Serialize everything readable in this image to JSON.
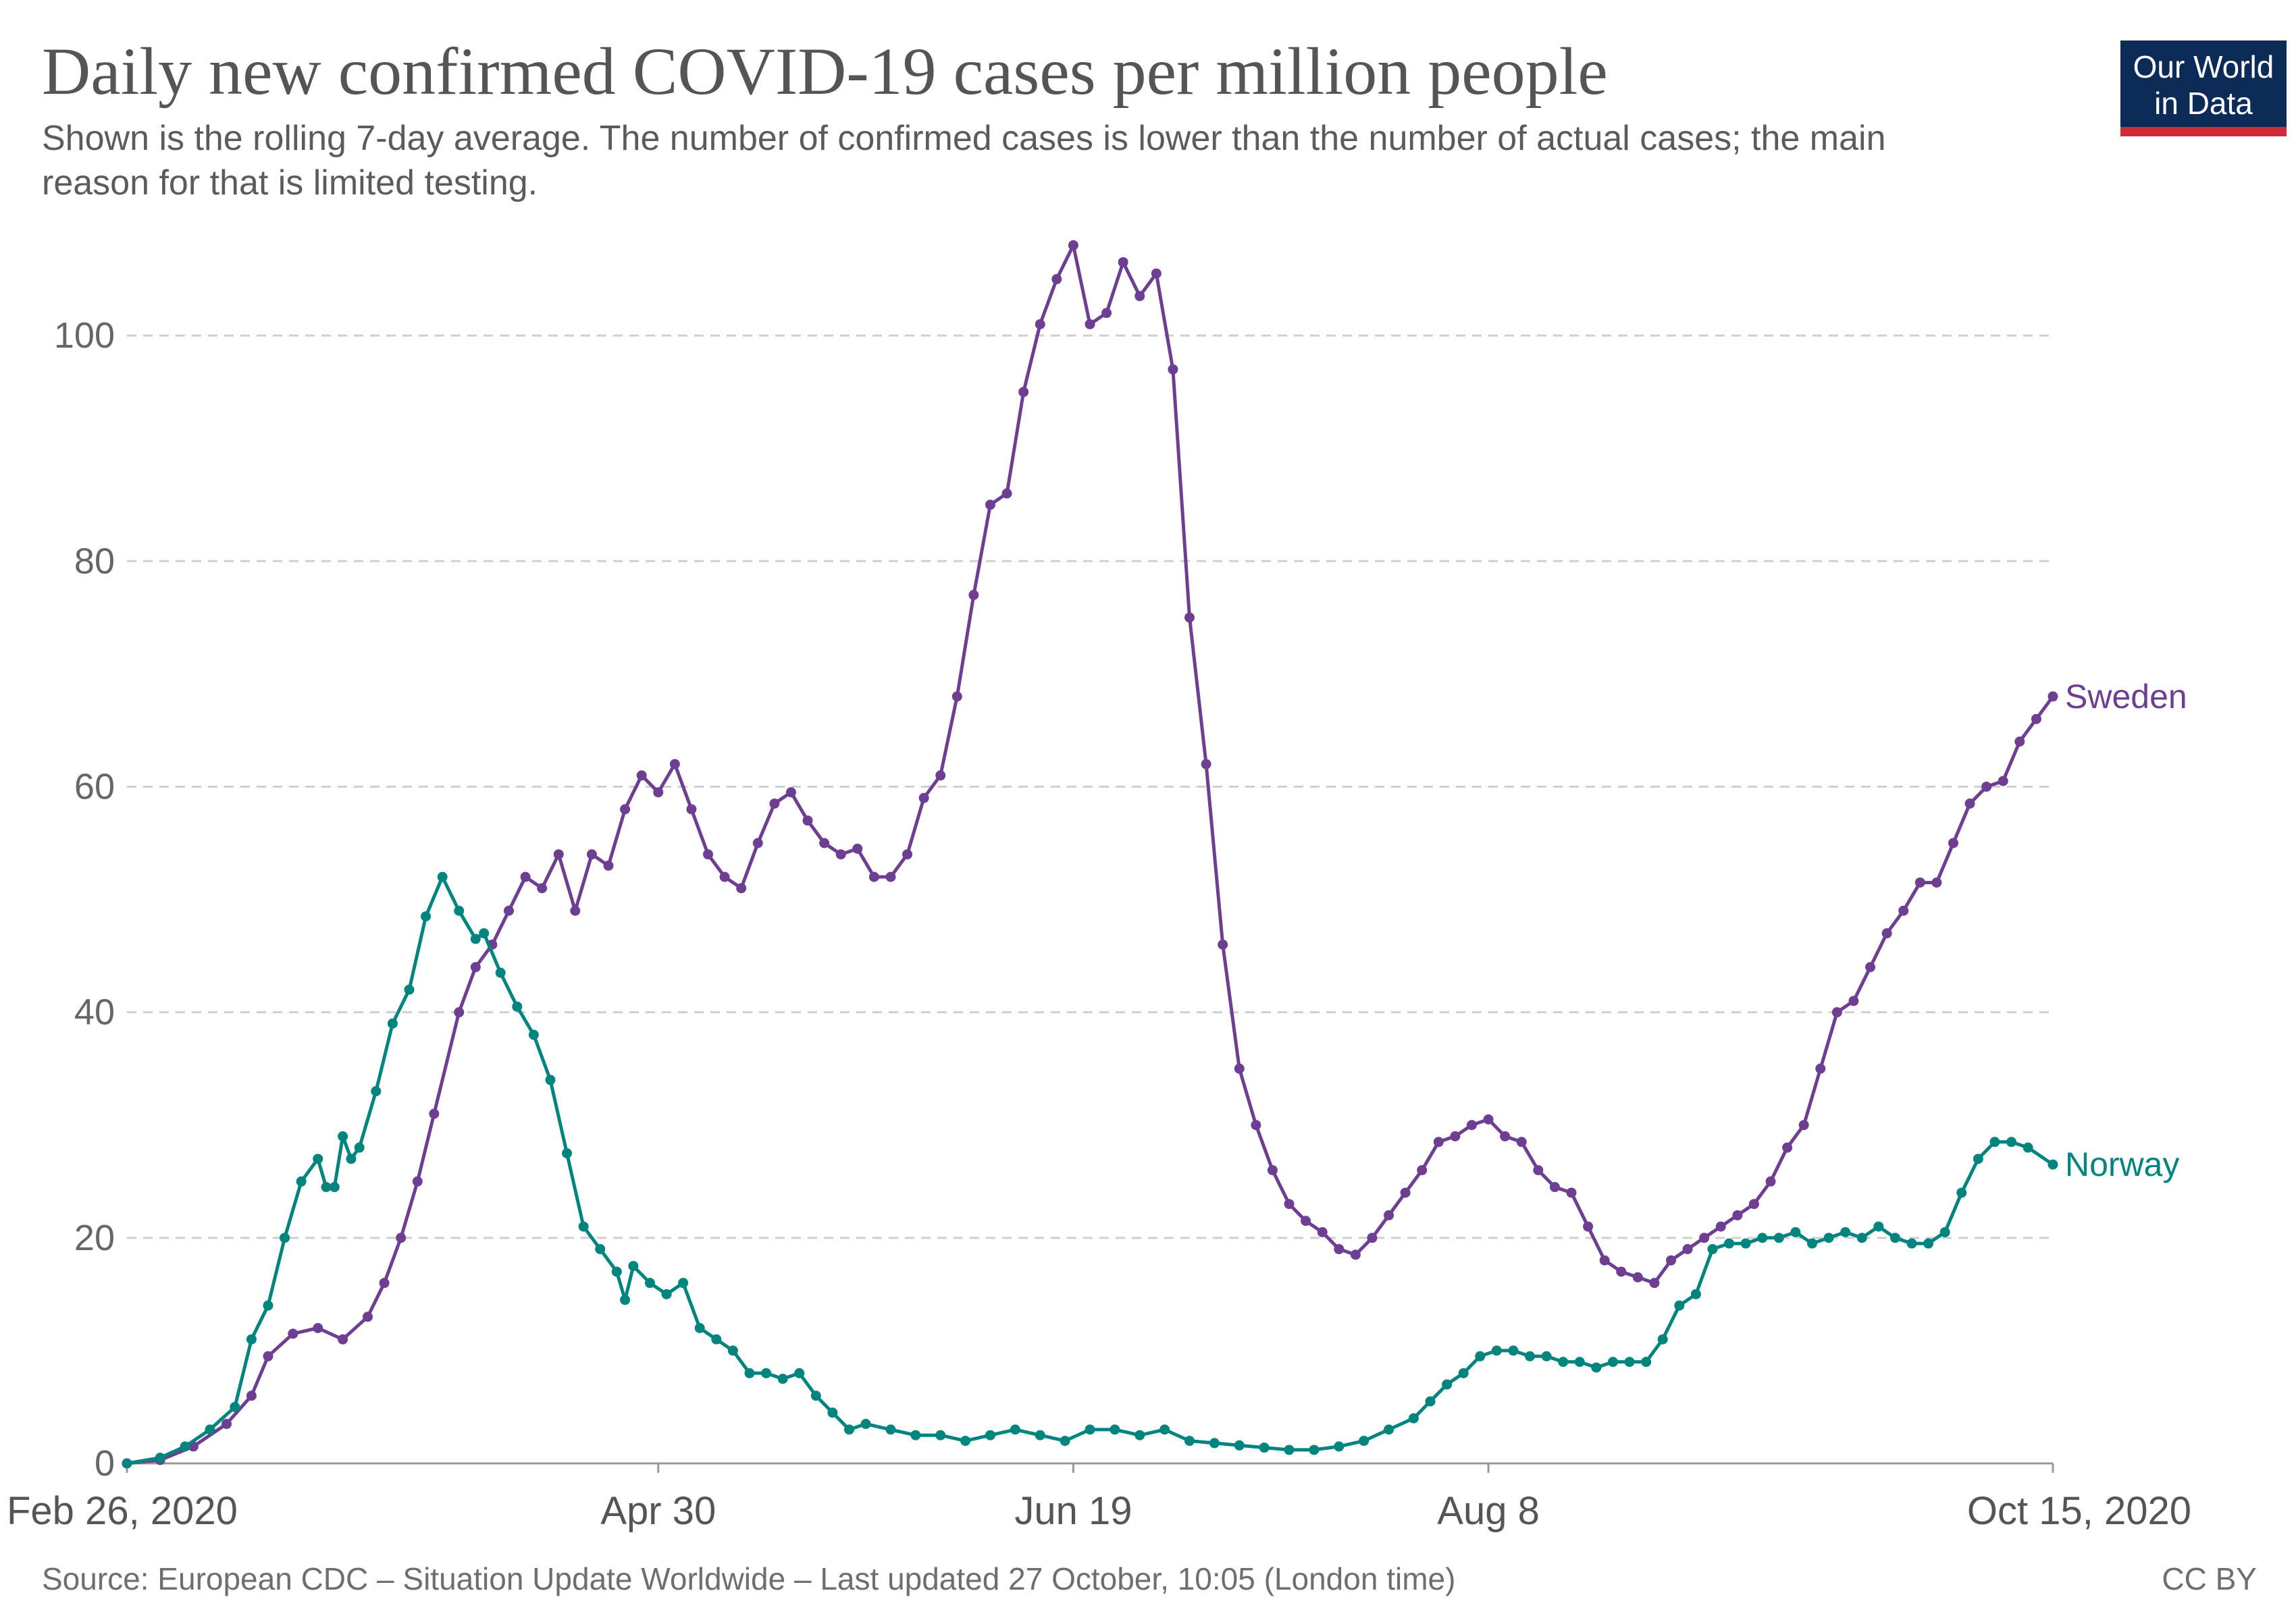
{
  "header": {
    "title": "Daily new confirmed COVID-19 cases per million people",
    "subtitle": "Shown is the rolling 7-day average. The number of confirmed cases is lower than the number of actual cases; the main reason for that is limited testing."
  },
  "logo": {
    "line1": "Our World",
    "line2": "in Data",
    "bg_color": "#0d2b57",
    "accent_color": "#ce2b37"
  },
  "footer": {
    "source": "Source: European CDC – Situation Update Worldwide – Last updated 27 October, 10:05 (London time)",
    "license": "CC BY"
  },
  "chart_data": {
    "type": "line",
    "title": "Daily new confirmed COVID-19 cases per million people",
    "xlabel": "",
    "ylabel": "",
    "x_range": [
      "2020-02-26",
      "2020-10-15"
    ],
    "ylim": [
      0,
      110
    ],
    "yticks": [
      0,
      20,
      40,
      60,
      80,
      100
    ],
    "xticks": [
      {
        "date": "2020-02-26",
        "label": "Feb 26, 2020"
      },
      {
        "date": "2020-04-30",
        "label": "Apr 30"
      },
      {
        "date": "2020-06-19",
        "label": "Jun 19"
      },
      {
        "date": "2020-08-08",
        "label": "Aug 8"
      },
      {
        "date": "2020-10-15",
        "label": "Oct 15, 2020"
      }
    ],
    "grid": "horizontal dashed",
    "legend": "labels at line ends (right)",
    "series": [
      {
        "name": "Sweden",
        "color": "#6d3e91",
        "points": [
          [
            "2020-02-26",
            0
          ],
          [
            "2020-03-01",
            0.3
          ],
          [
            "2020-03-05",
            1.5
          ],
          [
            "2020-03-09",
            3.5
          ],
          [
            "2020-03-12",
            6
          ],
          [
            "2020-03-14",
            9.5
          ],
          [
            "2020-03-17",
            11.5
          ],
          [
            "2020-03-20",
            12
          ],
          [
            "2020-03-23",
            11
          ],
          [
            "2020-03-26",
            13
          ],
          [
            "2020-03-28",
            16
          ],
          [
            "2020-03-30",
            20
          ],
          [
            "2020-04-01",
            25
          ],
          [
            "2020-04-03",
            31
          ],
          [
            "2020-04-06",
            40
          ],
          [
            "2020-04-08",
            44
          ],
          [
            "2020-04-10",
            46
          ],
          [
            "2020-04-12",
            49
          ],
          [
            "2020-04-14",
            52
          ],
          [
            "2020-04-16",
            51
          ],
          [
            "2020-04-18",
            54
          ],
          [
            "2020-04-20",
            49
          ],
          [
            "2020-04-22",
            54
          ],
          [
            "2020-04-24",
            53
          ],
          [
            "2020-04-26",
            58
          ],
          [
            "2020-04-28",
            61
          ],
          [
            "2020-04-30",
            59.5
          ],
          [
            "2020-05-02",
            62
          ],
          [
            "2020-05-04",
            58
          ],
          [
            "2020-05-06",
            54
          ],
          [
            "2020-05-08",
            52
          ],
          [
            "2020-05-10",
            51
          ],
          [
            "2020-05-12",
            55
          ],
          [
            "2020-05-14",
            58.5
          ],
          [
            "2020-05-16",
            59.5
          ],
          [
            "2020-05-18",
            57
          ],
          [
            "2020-05-20",
            55
          ],
          [
            "2020-05-22",
            54
          ],
          [
            "2020-05-24",
            54.5
          ],
          [
            "2020-05-26",
            52
          ],
          [
            "2020-05-28",
            52
          ],
          [
            "2020-05-30",
            54
          ],
          [
            "2020-06-01",
            59
          ],
          [
            "2020-06-03",
            61
          ],
          [
            "2020-06-05",
            68
          ],
          [
            "2020-06-07",
            77
          ],
          [
            "2020-06-09",
            85
          ],
          [
            "2020-06-11",
            86
          ],
          [
            "2020-06-13",
            95
          ],
          [
            "2020-06-15",
            101
          ],
          [
            "2020-06-17",
            105
          ],
          [
            "2020-06-19",
            108
          ],
          [
            "2020-06-21",
            101
          ],
          [
            "2020-06-23",
            102
          ],
          [
            "2020-06-25",
            106.5
          ],
          [
            "2020-06-27",
            103.5
          ],
          [
            "2020-06-29",
            105.5
          ],
          [
            "2020-07-01",
            97
          ],
          [
            "2020-07-03",
            75
          ],
          [
            "2020-07-05",
            62
          ],
          [
            "2020-07-07",
            46
          ],
          [
            "2020-07-09",
            35
          ],
          [
            "2020-07-11",
            30
          ],
          [
            "2020-07-13",
            26
          ],
          [
            "2020-07-15",
            23
          ],
          [
            "2020-07-17",
            21.5
          ],
          [
            "2020-07-19",
            20.5
          ],
          [
            "2020-07-21",
            19
          ],
          [
            "2020-07-23",
            18.5
          ],
          [
            "2020-07-25",
            20
          ],
          [
            "2020-07-27",
            22
          ],
          [
            "2020-07-29",
            24
          ],
          [
            "2020-07-31",
            26
          ],
          [
            "2020-08-02",
            28.5
          ],
          [
            "2020-08-04",
            29
          ],
          [
            "2020-08-06",
            30
          ],
          [
            "2020-08-08",
            30.5
          ],
          [
            "2020-08-10",
            29
          ],
          [
            "2020-08-12",
            28.5
          ],
          [
            "2020-08-14",
            26
          ],
          [
            "2020-08-16",
            24.5
          ],
          [
            "2020-08-18",
            24
          ],
          [
            "2020-08-20",
            21
          ],
          [
            "2020-08-22",
            18
          ],
          [
            "2020-08-24",
            17
          ],
          [
            "2020-08-26",
            16.5
          ],
          [
            "2020-08-28",
            16
          ],
          [
            "2020-08-30",
            18
          ],
          [
            "2020-09-01",
            19
          ],
          [
            "2020-09-03",
            20
          ],
          [
            "2020-09-05",
            21
          ],
          [
            "2020-09-07",
            22
          ],
          [
            "2020-09-09",
            23
          ],
          [
            "2020-09-11",
            25
          ],
          [
            "2020-09-13",
            28
          ],
          [
            "2020-09-15",
            30
          ],
          [
            "2020-09-17",
            35
          ],
          [
            "2020-09-19",
            40
          ],
          [
            "2020-09-21",
            41
          ],
          [
            "2020-09-23",
            44
          ],
          [
            "2020-09-25",
            47
          ],
          [
            "2020-09-27",
            49
          ],
          [
            "2020-09-29",
            51.5
          ],
          [
            "2020-10-01",
            51.5
          ],
          [
            "2020-10-03",
            55
          ],
          [
            "2020-10-05",
            58.5
          ],
          [
            "2020-10-07",
            60
          ],
          [
            "2020-10-09",
            60.5
          ],
          [
            "2020-10-11",
            64
          ],
          [
            "2020-10-13",
            66
          ],
          [
            "2020-10-15",
            68
          ]
        ]
      },
      {
        "name": "Norway",
        "color": "#00847e",
        "points": [
          [
            "2020-02-26",
            0
          ],
          [
            "2020-03-01",
            0.5
          ],
          [
            "2020-03-04",
            1.5
          ],
          [
            "2020-03-07",
            3
          ],
          [
            "2020-03-10",
            5
          ],
          [
            "2020-03-12",
            11
          ],
          [
            "2020-03-14",
            14
          ],
          [
            "2020-03-16",
            20
          ],
          [
            "2020-03-18",
            25
          ],
          [
            "2020-03-20",
            27
          ],
          [
            "2020-03-21",
            24.5
          ],
          [
            "2020-03-22",
            24.5
          ],
          [
            "2020-03-23",
            29
          ],
          [
            "2020-03-24",
            27
          ],
          [
            "2020-03-25",
            28
          ],
          [
            "2020-03-27",
            33
          ],
          [
            "2020-03-29",
            39
          ],
          [
            "2020-03-31",
            42
          ],
          [
            "2020-04-02",
            48.5
          ],
          [
            "2020-04-04",
            52
          ],
          [
            "2020-04-06",
            49
          ],
          [
            "2020-04-08",
            46.5
          ],
          [
            "2020-04-09",
            47
          ],
          [
            "2020-04-11",
            43.5
          ],
          [
            "2020-04-13",
            40.5
          ],
          [
            "2020-04-15",
            38
          ],
          [
            "2020-04-17",
            34
          ],
          [
            "2020-04-19",
            27.5
          ],
          [
            "2020-04-21",
            21
          ],
          [
            "2020-04-23",
            19
          ],
          [
            "2020-04-25",
            17
          ],
          [
            "2020-04-26",
            14.5
          ],
          [
            "2020-04-27",
            17.5
          ],
          [
            "2020-04-29",
            16
          ],
          [
            "2020-05-01",
            15
          ],
          [
            "2020-05-03",
            16
          ],
          [
            "2020-05-05",
            12
          ],
          [
            "2020-05-07",
            11
          ],
          [
            "2020-05-09",
            10
          ],
          [
            "2020-05-11",
            8
          ],
          [
            "2020-05-13",
            8
          ],
          [
            "2020-05-15",
            7.5
          ],
          [
            "2020-05-17",
            8
          ],
          [
            "2020-05-19",
            6
          ],
          [
            "2020-05-21",
            4.5
          ],
          [
            "2020-05-23",
            3
          ],
          [
            "2020-05-25",
            3.5
          ],
          [
            "2020-05-28",
            3
          ],
          [
            "2020-05-31",
            2.5
          ],
          [
            "2020-06-03",
            2.5
          ],
          [
            "2020-06-06",
            2
          ],
          [
            "2020-06-09",
            2.5
          ],
          [
            "2020-06-12",
            3
          ],
          [
            "2020-06-15",
            2.5
          ],
          [
            "2020-06-18",
            2
          ],
          [
            "2020-06-21",
            3
          ],
          [
            "2020-06-24",
            3
          ],
          [
            "2020-06-27",
            2.5
          ],
          [
            "2020-06-30",
            3
          ],
          [
            "2020-07-03",
            2
          ],
          [
            "2020-07-06",
            1.8
          ],
          [
            "2020-07-09",
            1.6
          ],
          [
            "2020-07-12",
            1.4
          ],
          [
            "2020-07-15",
            1.2
          ],
          [
            "2020-07-18",
            1.2
          ],
          [
            "2020-07-21",
            1.5
          ],
          [
            "2020-07-24",
            2
          ],
          [
            "2020-07-27",
            3
          ],
          [
            "2020-07-30",
            4
          ],
          [
            "2020-08-01",
            5.5
          ],
          [
            "2020-08-03",
            7
          ],
          [
            "2020-08-05",
            8
          ],
          [
            "2020-08-07",
            9.5
          ],
          [
            "2020-08-09",
            10
          ],
          [
            "2020-08-11",
            10
          ],
          [
            "2020-08-13",
            9.5
          ],
          [
            "2020-08-15",
            9.5
          ],
          [
            "2020-08-17",
            9
          ],
          [
            "2020-08-19",
            9
          ],
          [
            "2020-08-21",
            8.5
          ],
          [
            "2020-08-23",
            9
          ],
          [
            "2020-08-25",
            9
          ],
          [
            "2020-08-27",
            9
          ],
          [
            "2020-08-29",
            11
          ],
          [
            "2020-08-31",
            14
          ],
          [
            "2020-09-02",
            15
          ],
          [
            "2020-09-04",
            19
          ],
          [
            "2020-09-06",
            19.5
          ],
          [
            "2020-09-08",
            19.5
          ],
          [
            "2020-09-10",
            20
          ],
          [
            "2020-09-12",
            20
          ],
          [
            "2020-09-14",
            20.5
          ],
          [
            "2020-09-16",
            19.5
          ],
          [
            "2020-09-18",
            20
          ],
          [
            "2020-09-20",
            20.5
          ],
          [
            "2020-09-22",
            20
          ],
          [
            "2020-09-24",
            21
          ],
          [
            "2020-09-26",
            20
          ],
          [
            "2020-09-28",
            19.5
          ],
          [
            "2020-09-30",
            19.5
          ],
          [
            "2020-10-02",
            20.5
          ],
          [
            "2020-10-04",
            24
          ],
          [
            "2020-10-06",
            27
          ],
          [
            "2020-10-08",
            28.5
          ],
          [
            "2020-10-10",
            28.5
          ],
          [
            "2020-10-12",
            28
          ],
          [
            "2020-10-15",
            26.5
          ]
        ]
      }
    ]
  }
}
